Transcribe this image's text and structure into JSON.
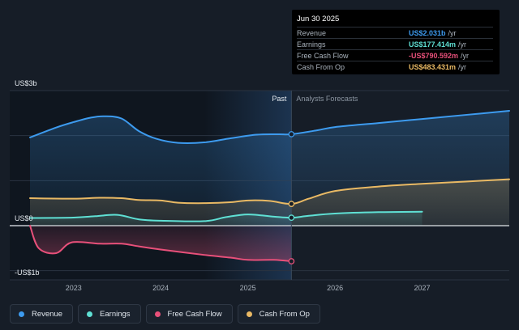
{
  "tooltip": {
    "date": "Jun 30 2025",
    "rows": [
      {
        "label": "Revenue",
        "value": "US$2.031b",
        "unit": "/yr",
        "color": "#3d9bef"
      },
      {
        "label": "Earnings",
        "value": "US$177.414m",
        "unit": "/yr",
        "color": "#5fe0d4"
      },
      {
        "label": "Free Cash Flow",
        "value": "-US$790.592m",
        "unit": "/yr",
        "color": "#e8507a"
      },
      {
        "label": "Cash From Op",
        "value": "US$483.431m",
        "unit": "/yr",
        "color": "#e9b964"
      }
    ]
  },
  "chart_data": {
    "type": "line",
    "title": "",
    "y_labels": [
      "US$3b",
      "US$0",
      "-US$1b"
    ],
    "ylim": [
      -1,
      3
    ],
    "xlim": [
      2022.5,
      2028.0
    ],
    "x_ticks": [
      {
        "value": 2023,
        "label": "2023"
      },
      {
        "value": 2024,
        "label": "2024"
      },
      {
        "value": 2025,
        "label": "2025"
      },
      {
        "value": 2026,
        "label": "2026"
      },
      {
        "value": 2027,
        "label": "2027"
      }
    ],
    "past_label": "Past",
    "forecast_label": "Analysts Forecasts",
    "divider_x": 2025.5,
    "highlight_start": 2024.5,
    "series": [
      {
        "name": "Revenue",
        "color": "#3d9bef",
        "area": true,
        "points": [
          [
            2022.5,
            1.96
          ],
          [
            2022.8,
            2.18
          ],
          [
            2023.0,
            2.3
          ],
          [
            2023.2,
            2.4
          ],
          [
            2023.35,
            2.43
          ],
          [
            2023.55,
            2.38
          ],
          [
            2023.75,
            2.1
          ],
          [
            2023.95,
            1.93
          ],
          [
            2024.2,
            1.84
          ],
          [
            2024.5,
            1.85
          ],
          [
            2024.8,
            1.94
          ],
          [
            2025.1,
            2.02
          ],
          [
            2025.35,
            2.03
          ],
          [
            2025.5,
            2.031
          ],
          [
            2025.8,
            2.12
          ],
          [
            2026.0,
            2.19
          ],
          [
            2026.5,
            2.28
          ],
          [
            2027.0,
            2.37
          ],
          [
            2027.5,
            2.46
          ],
          [
            2028.0,
            2.55
          ]
        ]
      },
      {
        "name": "Cash From Op",
        "color": "#e9b964",
        "area": true,
        "points": [
          [
            2022.5,
            0.61
          ],
          [
            2023.0,
            0.6
          ],
          [
            2023.3,
            0.62
          ],
          [
            2023.55,
            0.61
          ],
          [
            2023.75,
            0.57
          ],
          [
            2024.0,
            0.56
          ],
          [
            2024.2,
            0.51
          ],
          [
            2024.5,
            0.5
          ],
          [
            2024.8,
            0.52
          ],
          [
            2025.0,
            0.56
          ],
          [
            2025.25,
            0.55
          ],
          [
            2025.5,
            0.483
          ],
          [
            2025.7,
            0.6
          ],
          [
            2026.0,
            0.77
          ],
          [
            2026.5,
            0.87
          ],
          [
            2027.0,
            0.93
          ],
          [
            2027.5,
            0.98
          ],
          [
            2028.0,
            1.03
          ]
        ]
      },
      {
        "name": "Earnings",
        "color": "#5fe0d4",
        "area": true,
        "points": [
          [
            2022.5,
            0.17
          ],
          [
            2023.0,
            0.18
          ],
          [
            2023.25,
            0.21
          ],
          [
            2023.5,
            0.24
          ],
          [
            2023.75,
            0.14
          ],
          [
            2024.0,
            0.11
          ],
          [
            2024.5,
            0.1
          ],
          [
            2024.75,
            0.19
          ],
          [
            2025.0,
            0.25
          ],
          [
            2025.3,
            0.2
          ],
          [
            2025.5,
            0.177
          ],
          [
            2025.7,
            0.22
          ],
          [
            2026.0,
            0.27
          ],
          [
            2026.5,
            0.3
          ],
          [
            2027.0,
            0.31
          ]
        ]
      },
      {
        "name": "Free Cash Flow",
        "color": "#e8507a",
        "area": true,
        "points": [
          [
            2022.5,
            0.0
          ],
          [
            2022.6,
            -0.5
          ],
          [
            2022.8,
            -0.61
          ],
          [
            2022.98,
            -0.37
          ],
          [
            2023.3,
            -0.4
          ],
          [
            2023.55,
            -0.4
          ],
          [
            2023.75,
            -0.46
          ],
          [
            2024.0,
            -0.53
          ],
          [
            2024.5,
            -0.65
          ],
          [
            2024.8,
            -0.71
          ],
          [
            2025.0,
            -0.76
          ],
          [
            2025.3,
            -0.76
          ],
          [
            2025.5,
            -0.791
          ]
        ]
      }
    ],
    "markers": [
      {
        "series": "Revenue",
        "x": 2025.5,
        "y": 2.031
      },
      {
        "series": "Cash From Op",
        "x": 2025.5,
        "y": 0.483
      },
      {
        "series": "Earnings",
        "x": 2025.5,
        "y": 0.177
      },
      {
        "series": "Free Cash Flow",
        "x": 2025.5,
        "y": -0.791
      }
    ]
  },
  "legend": {
    "items": [
      {
        "label": "Revenue",
        "color": "#3d9bef"
      },
      {
        "label": "Earnings",
        "color": "#5fe0d4"
      },
      {
        "label": "Free Cash Flow",
        "color": "#e8507a"
      },
      {
        "label": "Cash From Op",
        "color": "#e9b964"
      }
    ]
  }
}
